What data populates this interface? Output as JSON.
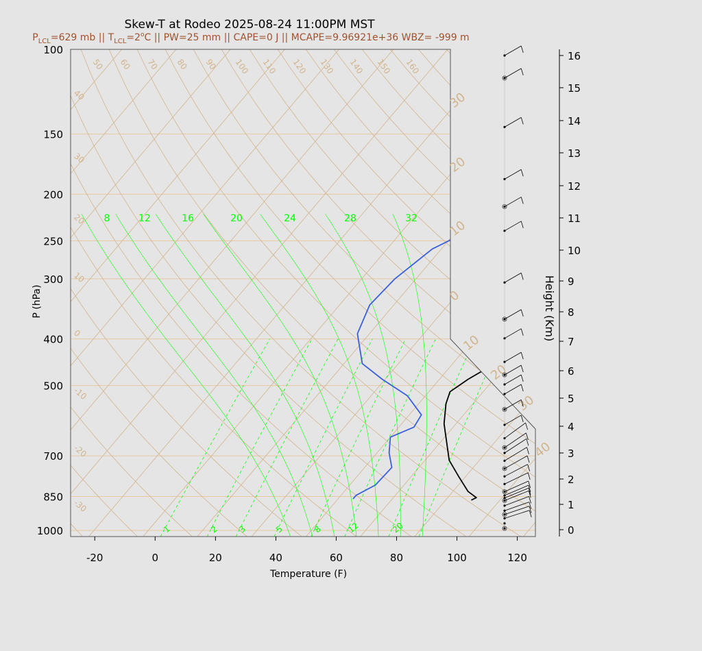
{
  "title": "Skew-T at Rodeo 2025-08-24 11:00PM MST",
  "subtitle": {
    "p_sym": "P",
    "p_sub": "LCL",
    "p_val": "=629 mb || ",
    "t_sym": "T",
    "t_sub": "LCL",
    "t_val": "=2",
    "t_sup": "o",
    "rest": "C || PW=25 mm || CAPE=0 J || MCAPE=9.96921e+36 WBZ= -999 m"
  },
  "colors": {
    "title": "#000000",
    "subtitle": "#a0522d",
    "temperature": "#000000",
    "dewpoint": "#3a5fdc",
    "mixing_ratio": "#00ff00",
    "adiabat": "#d2b48c",
    "isobar": "#e8c8a0"
  },
  "chart_data": {
    "type": "line",
    "xlabel": "Temperature (F)",
    "ylabel": "P (hPa)",
    "y2label": "Height (Km)",
    "xlim": [
      -28,
      126
    ],
    "ylim": [
      1030,
      100
    ],
    "x_ticks": [
      "-20",
      "0",
      "20",
      "40",
      "60",
      "80",
      "100",
      "120"
    ],
    "y_ticks": [
      "100",
      "150",
      "200",
      "250",
      "300",
      "400",
      "500",
      "700",
      "850",
      "1000"
    ],
    "height_ticks": [
      "0",
      "1",
      "2",
      "3",
      "4",
      "5",
      "6",
      "7",
      "8",
      "9",
      "10",
      "11",
      "12",
      "13",
      "14",
      "15",
      "16"
    ],
    "series": [
      {
        "key": "temperature",
        "points": [
          [
            94.5,
            865
          ],
          [
            95.5,
            855
          ],
          [
            91,
            830
          ],
          [
            84,
            775
          ],
          [
            76,
            715
          ],
          [
            70,
            655
          ],
          [
            64,
            600
          ],
          [
            59,
            545
          ],
          [
            57,
            515
          ],
          [
            59.5,
            485
          ],
          [
            64,
            450
          ],
          [
            67,
            410
          ],
          [
            70,
            390
          ],
          [
            74,
            355
          ],
          [
            80,
            310
          ],
          [
            87,
            260
          ],
          [
            94,
            228
          ],
          [
            99,
            200
          ],
          [
            101,
            170
          ],
          [
            104,
            135
          ],
          [
            108,
            100
          ]
        ]
      },
      {
        "key": "dewpoint",
        "points": [
          [
            55,
            860
          ],
          [
            55,
            845
          ],
          [
            58.5,
            805
          ],
          [
            59,
            740
          ],
          [
            54,
            690
          ],
          [
            50,
            640
          ],
          [
            55,
            610
          ],
          [
            54,
            575
          ],
          [
            44,
            525
          ],
          [
            31,
            485
          ],
          [
            20,
            450
          ],
          [
            10,
            390
          ],
          [
            6,
            340
          ],
          [
            7,
            300
          ],
          [
            11,
            260
          ],
          [
            21,
            230
          ],
          [
            28,
            200
          ],
          [
            24,
            170
          ],
          [
            42,
            135
          ],
          [
            60,
            100
          ]
        ]
      }
    ],
    "mixing_ratio_labels_top": [
      "8",
      "12",
      "16",
      "20",
      "24",
      "28",
      "32"
    ],
    "mixing_ratio_labels_bottom": [
      "1",
      "2",
      "3",
      "5",
      "8",
      "12",
      "20"
    ],
    "dry_adiabat_labels": [
      "50",
      "60",
      "70",
      "80",
      "90",
      "100",
      "110",
      "120",
      "130",
      "140",
      "150",
      "160"
    ],
    "isotherm_labels_left": [
      "40",
      "30",
      "20",
      "10",
      "0",
      "-10",
      "-20",
      "-30"
    ],
    "isotherm_labels_right": [
      "30",
      "20",
      "10",
      "0",
      "10",
      "20",
      "30",
      "40"
    ],
    "wind_profile_heights_km": [
      0.05,
      0.25,
      0.45,
      0.6,
      0.75,
      0.95,
      1.15,
      1.25,
      1.35,
      1.5,
      1.8,
      2.1,
      2.4,
      2.7,
      3.0,
      3.2,
      3.55,
      4.05,
      4.6,
      5.15,
      5.5,
      5.85,
      6.3,
      7.1,
      7.75,
      8.95,
      10.6,
      11.35,
      12.2,
      13.8,
      15.3,
      16.2
    ]
  }
}
